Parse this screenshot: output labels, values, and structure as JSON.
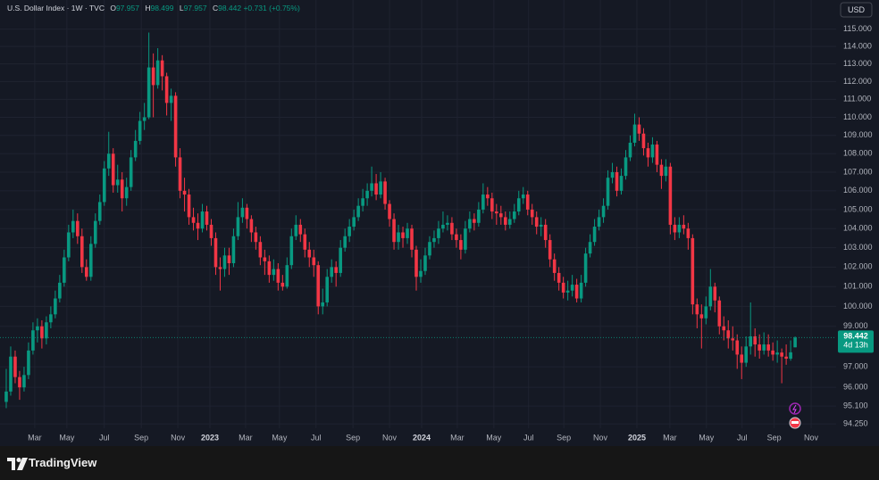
{
  "chart_data": {
    "type": "candlestick",
    "title": "U.S. Dollar Index · 1W · TVC",
    "ohlc_labels": [
      "O",
      "H",
      "L",
      "C"
    ],
    "change": "+0.731 (+0.75%)",
    "countdown": "4d 13h",
    "currency": "USD",
    "log_scale": true,
    "grid": true,
    "up_color": "#089981",
    "down_color": "#f23645",
    "series": [
      {
        "open": [
          95.3,
          95.8,
          97.5,
          96.5,
          96.0,
          96.6,
          97.8,
          98.8,
          99.0,
          98.4,
          99.2,
          99.6,
          100.4,
          101.2,
          102.5,
          103.8,
          104.4,
          103.6,
          102.0,
          101.5,
          103.2,
          104.4,
          105.4,
          107.2,
          108.0,
          106.3,
          106.6,
          105.6,
          106.2,
          107.8,
          108.7,
          109.8,
          110.0,
          112.8,
          111.8,
          113.2,
          112.3,
          110.8,
          111.2,
          107.8,
          106.0,
          105.8,
          104.6,
          104.3,
          104.0,
          104.9,
          104.2,
          103.5,
          102.0,
          101.9,
          102.6,
          102.2,
          103.6,
          104.6,
          105.1,
          104.5,
          103.8,
          103.3,
          102.5,
          102.3,
          101.6,
          101.9,
          101.2,
          101.0,
          102.1,
          103.6,
          104.2,
          103.7,
          102.9,
          102.5,
          102.1,
          100.0,
          100.2,
          101.5,
          102.0,
          101.7,
          103.0,
          103.6,
          104.1,
          104.6,
          105.2,
          105.6,
          106.0,
          106.4,
          105.8,
          106.5,
          105.3,
          104.5,
          103.3,
          103.8,
          103.5,
          104.0,
          102.9,
          101.5,
          101.8,
          102.6,
          103.3,
          103.5,
          104.0,
          104.2,
          104.3,
          103.7,
          103.4,
          102.9,
          104.0,
          104.5,
          104.3,
          105.0,
          105.8,
          105.6,
          104.9,
          104.8,
          104.6,
          104.2,
          104.5,
          104.9,
          105.6,
          105.8,
          105.0,
          104.6,
          104.1,
          104.2,
          103.4,
          102.4,
          101.7,
          101.2,
          100.7,
          100.8,
          101.1,
          100.4,
          101.2,
          102.7,
          103.3,
          104.1,
          104.6,
          105.2,
          106.7,
          107.0,
          106.0,
          106.8,
          107.8,
          108.6,
          109.6,
          109.1,
          108.3,
          107.8,
          108.5,
          107.4,
          106.8,
          107.3,
          104.2,
          103.8,
          104.2,
          104.0,
          103.5,
          100.1,
          99.6,
          99.4,
          100.0,
          101.0,
          100.3,
          99.0,
          98.8,
          98.4,
          98.3,
          97.6,
          97.2,
          98.0,
          98.5,
          98.1,
          97.8,
          98.1,
          97.8,
          97.6,
          97.7,
          97.5,
          97.4,
          97.957
        ],
        "high": [
          96.9,
          98.0,
          97.8,
          96.8,
          97.0,
          98.2,
          99.2,
          99.4,
          99.3,
          99.5,
          100.0,
          100.8,
          101.6,
          102.9,
          104.2,
          105.0,
          104.8,
          104.0,
          102.4,
          103.6,
          104.8,
          105.8,
          107.6,
          109.2,
          108.3,
          107.4,
          107.0,
          106.7,
          108.2,
          109.3,
          110.3,
          110.8,
          114.8,
          113.6,
          113.9,
          113.5,
          112.5,
          111.6,
          111.4,
          108.3,
          106.7,
          106.1,
          105.1,
          104.8,
          105.3,
          105.2,
          104.5,
          103.8,
          102.5,
          103.0,
          103.0,
          104.0,
          105.4,
          105.6,
          105.3,
          104.7,
          104.1,
          103.6,
          102.9,
          102.6,
          102.4,
          102.2,
          101.6,
          102.5,
          104.0,
          104.7,
          104.5,
          104.0,
          103.3,
          102.9,
          102.3,
          100.9,
          101.9,
          102.4,
          102.3,
          103.4,
          104.0,
          104.5,
          105.0,
          105.6,
          106.1,
          106.4,
          107.3,
          106.9,
          107.0,
          106.7,
          105.5,
          104.8,
          104.2,
          104.1,
          104.3,
          104.2,
          103.1,
          102.4,
          103.0,
          103.6,
          103.9,
          104.4,
          104.9,
          104.7,
          104.6,
          104.0,
          103.7,
          104.4,
          104.9,
          104.8,
          105.4,
          106.4,
          106.2,
          105.9,
          105.3,
          105.2,
          104.9,
          104.9,
          105.3,
          106.0,
          106.2,
          106.0,
          105.3,
          104.9,
          104.6,
          104.5,
          103.7,
          102.7,
          102.0,
          101.5,
          101.3,
          101.6,
          101.4,
          101.6,
          103.0,
          103.7,
          104.5,
          105.0,
          105.6,
          107.1,
          107.5,
          107.3,
          107.2,
          108.2,
          109.0,
          110.2,
          110.0,
          109.4,
          108.6,
          108.9,
          108.7,
          107.7,
          107.7,
          107.5,
          104.6,
          104.6,
          104.7,
          104.3,
          103.7,
          100.4,
          100.1,
          100.5,
          101.9,
          101.2,
          100.5,
          99.5,
          99.3,
          99.0,
          98.6,
          98.0,
          98.5,
          100.2,
          98.9,
          98.6,
          98.7,
          98.6,
          98.2,
          98.3,
          97.9,
          98.1,
          98.3,
          98.499
        ],
        "low": [
          95.0,
          95.6,
          96.2,
          95.4,
          95.8,
          96.4,
          97.6,
          98.2,
          97.9,
          98.1,
          98.9,
          99.4,
          100.2,
          101.0,
          102.3,
          103.5,
          103.2,
          101.7,
          101.3,
          101.3,
          103.0,
          104.2,
          105.2,
          106.8,
          105.9,
          105.9,
          104.9,
          105.2,
          106.0,
          107.6,
          108.5,
          109.3,
          109.9,
          110.0,
          111.6,
          111.5,
          110.1,
          109.8,
          107.3,
          105.6,
          104.9,
          104.2,
          103.9,
          103.4,
          103.8,
          103.9,
          103.1,
          101.6,
          100.8,
          101.5,
          101.6,
          102.0,
          103.4,
          104.3,
          104.0,
          103.3,
          102.9,
          102.1,
          101.6,
          101.2,
          101.3,
          100.8,
          100.8,
          100.9,
          101.9,
          103.4,
          103.3,
          102.5,
          102.0,
          101.5,
          99.6,
          99.6,
          100.0,
          101.2,
          101.0,
          101.5,
          102.8,
          103.3,
          103.9,
          104.4,
          104.9,
          105.2,
          105.7,
          105.5,
          105.6,
          105.0,
          104.1,
          102.9,
          102.9,
          103.0,
          103.2,
          102.5,
          100.8,
          101.2,
          101.6,
          102.4,
          103.0,
          103.2,
          103.8,
          103.9,
          103.4,
          103.0,
          102.4,
          102.7,
          103.8,
          103.9,
          104.1,
          104.8,
          105.2,
          104.5,
          104.2,
          104.2,
          103.9,
          104.0,
          104.3,
          104.7,
          105.3,
          104.7,
          104.2,
          103.7,
          103.6,
          103.0,
          102.0,
          101.3,
          100.8,
          100.4,
          100.3,
          100.5,
          100.2,
          100.2,
          101.0,
          102.5,
          103.1,
          103.9,
          104.3,
          105.0,
          106.4,
          105.7,
          105.8,
          106.6,
          107.6,
          108.4,
          108.7,
          107.9,
          107.3,
          107.5,
          107.0,
          106.1,
          106.5,
          103.7,
          103.4,
          103.5,
          103.7,
          102.9,
          99.6,
          98.9,
          97.9,
          99.1,
          99.8,
          99.7,
          98.6,
          98.3,
          97.9,
          97.8,
          96.9,
          96.4,
          97.0,
          97.6,
          97.5,
          97.4,
          97.6,
          97.5,
          97.3,
          97.2,
          96.2,
          97.1,
          97.3,
          97.957
        ],
        "close": [
          95.8,
          97.5,
          96.5,
          96.0,
          96.6,
          97.8,
          98.8,
          99.0,
          98.4,
          99.2,
          99.6,
          100.4,
          101.2,
          102.5,
          103.8,
          104.4,
          103.6,
          102.0,
          101.5,
          103.2,
          104.4,
          105.4,
          107.2,
          108.0,
          106.3,
          106.6,
          105.6,
          106.2,
          107.8,
          108.7,
          109.8,
          110.0,
          112.8,
          111.8,
          113.2,
          112.3,
          110.8,
          111.2,
          107.8,
          106.0,
          105.8,
          104.6,
          104.3,
          104.0,
          104.9,
          104.2,
          103.5,
          102.0,
          101.9,
          102.6,
          102.2,
          103.6,
          104.6,
          105.1,
          104.5,
          103.8,
          103.3,
          102.5,
          102.3,
          101.6,
          101.9,
          101.2,
          101.0,
          102.1,
          103.6,
          104.2,
          103.7,
          102.9,
          102.5,
          102.1,
          100.0,
          100.2,
          101.5,
          102.0,
          101.7,
          103.0,
          103.6,
          104.1,
          104.6,
          105.2,
          105.6,
          106.0,
          106.4,
          105.8,
          106.5,
          105.3,
          104.5,
          103.3,
          103.8,
          103.5,
          104.0,
          102.9,
          101.5,
          101.8,
          102.6,
          103.3,
          103.5,
          104.0,
          104.2,
          104.3,
          103.7,
          103.4,
          102.9,
          104.0,
          104.5,
          104.3,
          105.0,
          105.8,
          105.6,
          104.9,
          104.8,
          104.6,
          104.2,
          104.5,
          104.9,
          105.6,
          105.8,
          105.0,
          104.6,
          104.1,
          104.2,
          103.4,
          102.4,
          101.7,
          101.2,
          100.7,
          100.8,
          101.1,
          100.4,
          101.2,
          102.7,
          103.3,
          104.1,
          104.6,
          105.2,
          106.7,
          107.0,
          106.0,
          106.8,
          107.8,
          108.6,
          109.6,
          109.1,
          108.3,
          107.8,
          108.5,
          107.4,
          106.8,
          107.3,
          104.2,
          103.8,
          104.2,
          104.0,
          103.5,
          100.1,
          99.6,
          99.4,
          100.0,
          101.0,
          100.3,
          99.0,
          98.8,
          98.4,
          98.3,
          97.6,
          97.2,
          98.0,
          98.5,
          98.1,
          97.8,
          98.1,
          97.8,
          97.6,
          97.7,
          97.5,
          97.4,
          97.711,
          98.442
        ]
      }
    ],
    "xlim": [
      -1.4,
      186.2
    ],
    "xticks": [
      {
        "value": 6.4,
        "label": "Mar"
      },
      {
        "value": 13.6,
        "label": "May"
      },
      {
        "value": 22.0,
        "label": "Jul"
      },
      {
        "value": 30.3,
        "label": "Sep"
      },
      {
        "value": 38.5,
        "label": "Nov"
      },
      {
        "value": 45.7,
        "label": "2023"
      },
      {
        "value": 53.7,
        "label": "Mar"
      },
      {
        "value": 61.3,
        "label": "May"
      },
      {
        "value": 69.5,
        "label": "Jul"
      },
      {
        "value": 77.8,
        "label": "Sep"
      },
      {
        "value": 86.0,
        "label": "Nov"
      },
      {
        "value": 93.2,
        "label": "2024"
      },
      {
        "value": 101.2,
        "label": "Mar"
      },
      {
        "value": 109.4,
        "label": "May"
      },
      {
        "value": 117.2,
        "label": "Jul"
      },
      {
        "value": 125.1,
        "label": "Sep"
      },
      {
        "value": 133.3,
        "label": "Nov"
      },
      {
        "value": 141.5,
        "label": "2025"
      },
      {
        "value": 148.9,
        "label": "Mar"
      },
      {
        "value": 157.1,
        "label": "May"
      },
      {
        "value": 165.1,
        "label": "Jul"
      },
      {
        "value": 172.3,
        "label": "Sep"
      },
      {
        "value": 180.6,
        "label": "Nov"
      }
    ],
    "ylim": [
      93.2,
      116.7
    ],
    "yticks": [
      {
        "value": 115,
        "label": "115.000"
      },
      {
        "value": 114,
        "label": "114.000"
      },
      {
        "value": 113,
        "label": "113.000"
      },
      {
        "value": 112,
        "label": "112.000"
      },
      {
        "value": 111,
        "label": "111.000"
      },
      {
        "value": 110,
        "label": "110.000"
      },
      {
        "value": 109,
        "label": "109.000"
      },
      {
        "value": 108,
        "label": "108.000"
      },
      {
        "value": 107,
        "label": "107.000"
      },
      {
        "value": 106,
        "label": "106.000"
      },
      {
        "value": 105,
        "label": "105.000"
      },
      {
        "value": 104,
        "label": "104.000"
      },
      {
        "value": 103,
        "label": "103.000"
      },
      {
        "value": 102,
        "label": "102.000"
      },
      {
        "value": 101,
        "label": "101.000"
      },
      {
        "value": 100,
        "label": "100.000"
      },
      {
        "value": 99,
        "label": "99.000"
      },
      {
        "value": 97,
        "label": "97.000"
      },
      {
        "value": 96,
        "label": "96.000"
      },
      {
        "value": 95.1,
        "label": "95.100"
      },
      {
        "value": 94.25,
        "label": "94.250"
      }
    ]
  },
  "footer": {
    "brand": "TradingView"
  }
}
